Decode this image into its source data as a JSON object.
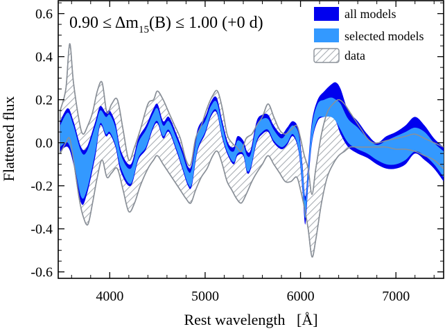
{
  "chart_data": {
    "type": "area",
    "title": {
      "prefix": "0.90 ≤ Δm",
      "subscript": "15",
      "suffix": "(B) ≤ 1.00 (+0 d)"
    },
    "xlabel": "Rest wavelength   [Å]",
    "ylabel": "Flattened flux",
    "xlim": [
      3460,
      7500
    ],
    "ylim": [
      -0.63,
      0.66
    ],
    "xticks": [
      4000,
      5000,
      6000,
      7000
    ],
    "xtick_labels": [
      "4000",
      "5000",
      "6000",
      "7000"
    ],
    "yticks": [
      -0.6,
      -0.4,
      -0.2,
      0.0,
      0.2,
      0.4,
      0.6
    ],
    "ytick_labels": [
      "-0.6",
      "-0.4",
      "-0.2",
      "0.0",
      "0.2",
      "0.4",
      "0.6"
    ],
    "legend_position": "top-right",
    "series": [
      {
        "name": "all models",
        "color": "#0000ee",
        "style": "solid",
        "x": [
          3480,
          3560,
          3620,
          3700,
          3760,
          3850,
          3900,
          3960,
          4000,
          4060,
          4120,
          4220,
          4300,
          4380,
          4450,
          4500,
          4560,
          4620,
          4700,
          4760,
          4820,
          4860,
          4920,
          5000,
          5060,
          5120,
          5180,
          5240,
          5300,
          5340,
          5400,
          5440,
          5480,
          5540,
          5600,
          5660,
          5720,
          5800,
          5860,
          5920,
          5980,
          6020,
          6050,
          6080,
          6120,
          6180,
          6250,
          6320,
          6370,
          6420,
          6500,
          6600,
          6700,
          6800,
          6900,
          7000,
          7100,
          7200,
          7300,
          7400,
          7500
        ],
        "upper": [
          0.1,
          0.16,
          0.1,
          -0.02,
          -0.02,
          0.1,
          0.17,
          0.14,
          0.15,
          0.09,
          -0.04,
          -0.1,
          0.02,
          0.08,
          0.15,
          0.18,
          0.1,
          0.12,
          0.04,
          -0.03,
          -0.11,
          -0.1,
          0.06,
          0.12,
          0.19,
          0.21,
          0.1,
          0.0,
          -0.02,
          0.03,
          0.01,
          -0.04,
          -0.03,
          0.1,
          0.13,
          0.13,
          0.08,
          0.04,
          0.07,
          0.1,
          0.06,
          -0.1,
          -0.25,
          -0.1,
          0.1,
          0.2,
          0.24,
          0.27,
          0.28,
          0.25,
          0.15,
          0.1,
          0.04,
          0.0,
          0.03,
          0.05,
          0.08,
          0.12,
          0.08,
          0.02,
          -0.02
        ],
        "lower": [
          -0.04,
          -0.02,
          -0.1,
          -0.28,
          -0.24,
          -0.06,
          0.08,
          0.03,
          0.04,
          -0.02,
          -0.14,
          -0.2,
          -0.08,
          -0.03,
          0.06,
          0.09,
          0.02,
          0.05,
          -0.04,
          -0.12,
          -0.2,
          -0.2,
          -0.04,
          0.04,
          0.12,
          0.14,
          0.02,
          -0.06,
          -0.1,
          -0.06,
          -0.06,
          -0.14,
          -0.12,
          0.0,
          0.04,
          0.05,
          0.0,
          -0.03,
          -0.01,
          0.03,
          -0.04,
          -0.22,
          -0.38,
          -0.2,
          0.0,
          0.1,
          0.12,
          0.12,
          0.1,
          0.04,
          -0.02,
          -0.05,
          -0.07,
          -0.1,
          -0.12,
          -0.12,
          -0.1,
          -0.05,
          -0.08,
          -0.12,
          -0.18
        ]
      },
      {
        "name": "selected models",
        "color": "#3399ff",
        "style": "solid",
        "x": [
          3480,
          3560,
          3620,
          3700,
          3760,
          3850,
          3900,
          3960,
          4000,
          4060,
          4120,
          4220,
          4300,
          4380,
          4450,
          4500,
          4560,
          4620,
          4700,
          4760,
          4820,
          4860,
          4920,
          5000,
          5060,
          5120,
          5180,
          5240,
          5300,
          5340,
          5400,
          5440,
          5480,
          5540,
          5600,
          5660,
          5720,
          5800,
          5860,
          5920,
          5980,
          6020,
          6050,
          6080,
          6120,
          6180,
          6250,
          6320,
          6370,
          6420,
          6500,
          6600,
          6700,
          6800,
          6900,
          7000,
          7100,
          7200,
          7300,
          7400,
          7500
        ],
        "upper": [
          0.08,
          0.14,
          0.08,
          -0.04,
          -0.04,
          0.08,
          0.15,
          0.12,
          0.13,
          0.07,
          -0.06,
          -0.12,
          0.0,
          0.06,
          0.13,
          0.16,
          0.08,
          0.1,
          0.02,
          -0.05,
          -0.13,
          -0.12,
          0.04,
          0.1,
          0.17,
          0.19,
          0.08,
          -0.02,
          -0.04,
          0.01,
          -0.01,
          -0.06,
          -0.05,
          0.08,
          0.11,
          0.11,
          0.06,
          0.02,
          0.05,
          0.08,
          0.04,
          -0.12,
          -0.27,
          -0.12,
          0.08,
          0.18,
          0.2,
          0.21,
          0.2,
          0.18,
          0.11,
          0.07,
          0.02,
          -0.01,
          0.01,
          0.03,
          0.05,
          0.07,
          0.05,
          0.0,
          -0.04
        ],
        "lower": [
          -0.02,
          0.0,
          -0.08,
          -0.25,
          -0.22,
          -0.04,
          0.09,
          0.04,
          0.05,
          -0.01,
          -0.12,
          -0.19,
          -0.07,
          -0.02,
          0.07,
          0.1,
          0.03,
          0.06,
          -0.03,
          -0.11,
          -0.19,
          -0.19,
          -0.03,
          0.05,
          0.13,
          0.15,
          0.03,
          -0.05,
          -0.09,
          -0.05,
          -0.05,
          -0.13,
          -0.11,
          0.01,
          0.05,
          0.06,
          0.01,
          -0.02,
          0.0,
          0.04,
          -0.03,
          -0.2,
          -0.35,
          -0.18,
          0.01,
          0.11,
          0.12,
          0.12,
          0.1,
          0.06,
          0.0,
          -0.03,
          -0.05,
          -0.08,
          -0.1,
          -0.1,
          -0.08,
          -0.04,
          -0.06,
          -0.1,
          -0.16
        ]
      },
      {
        "name": "data",
        "color": "#8a9098",
        "style": "hatched",
        "x": [
          3480,
          3540,
          3580,
          3620,
          3680,
          3720,
          3770,
          3820,
          3870,
          3920,
          3970,
          4020,
          4080,
          4140,
          4200,
          4260,
          4320,
          4400,
          4460,
          4500,
          4560,
          4620,
          4680,
          4740,
          4800,
          4850,
          4900,
          4960,
          5020,
          5080,
          5130,
          5180,
          5230,
          5280,
          5330,
          5380,
          5430,
          5490,
          5540,
          5600,
          5660,
          5720,
          5780,
          5840,
          5900,
          5960,
          6000,
          6040,
          6080,
          6120,
          6160,
          6220,
          6280,
          6340,
          6400,
          6460,
          6520,
          6580,
          6640,
          6700,
          6760,
          6820,
          6900,
          7000,
          7100,
          7200,
          7300,
          7400,
          7500
        ],
        "upper": [
          0.15,
          0.25,
          0.46,
          0.28,
          0.1,
          0.04,
          0.08,
          0.14,
          0.24,
          0.28,
          0.14,
          0.18,
          0.2,
          0.06,
          -0.08,
          -0.02,
          0.06,
          0.18,
          0.2,
          0.24,
          0.2,
          0.14,
          0.08,
          0.02,
          -0.08,
          -0.1,
          0.02,
          0.08,
          0.16,
          0.22,
          0.24,
          0.16,
          0.04,
          0.0,
          -0.02,
          -0.04,
          0.02,
          0.04,
          0.08,
          0.12,
          0.18,
          0.12,
          0.06,
          0.04,
          0.06,
          0.08,
          0.02,
          -0.06,
          -0.12,
          -0.24,
          -0.12,
          0.04,
          0.14,
          0.18,
          0.2,
          0.18,
          0.14,
          0.1,
          0.06,
          0.02,
          0.0,
          0.0,
          0.01,
          0.02,
          0.03,
          0.04,
          0.02,
          0.0,
          -0.02
        ],
        "lower": [
          -0.05,
          0.0,
          0.02,
          -0.08,
          -0.26,
          -0.34,
          -0.38,
          -0.28,
          -0.16,
          -0.08,
          -0.16,
          -0.14,
          -0.12,
          -0.22,
          -0.32,
          -0.28,
          -0.2,
          -0.12,
          -0.08,
          -0.06,
          -0.1,
          -0.14,
          -0.18,
          -0.22,
          -0.26,
          -0.28,
          -0.22,
          -0.16,
          -0.12,
          -0.06,
          -0.04,
          -0.1,
          -0.18,
          -0.22,
          -0.26,
          -0.28,
          -0.24,
          -0.18,
          -0.14,
          -0.1,
          -0.06,
          -0.1,
          -0.14,
          -0.18,
          -0.18,
          -0.16,
          -0.22,
          -0.3,
          -0.4,
          -0.53,
          -0.45,
          -0.28,
          -0.16,
          -0.1,
          -0.06,
          -0.04,
          -0.02,
          -0.02,
          -0.02,
          -0.02,
          -0.02,
          -0.02,
          -0.02,
          -0.03,
          -0.03,
          -0.04,
          -0.06,
          -0.08,
          -0.12
        ]
      }
    ]
  }
}
